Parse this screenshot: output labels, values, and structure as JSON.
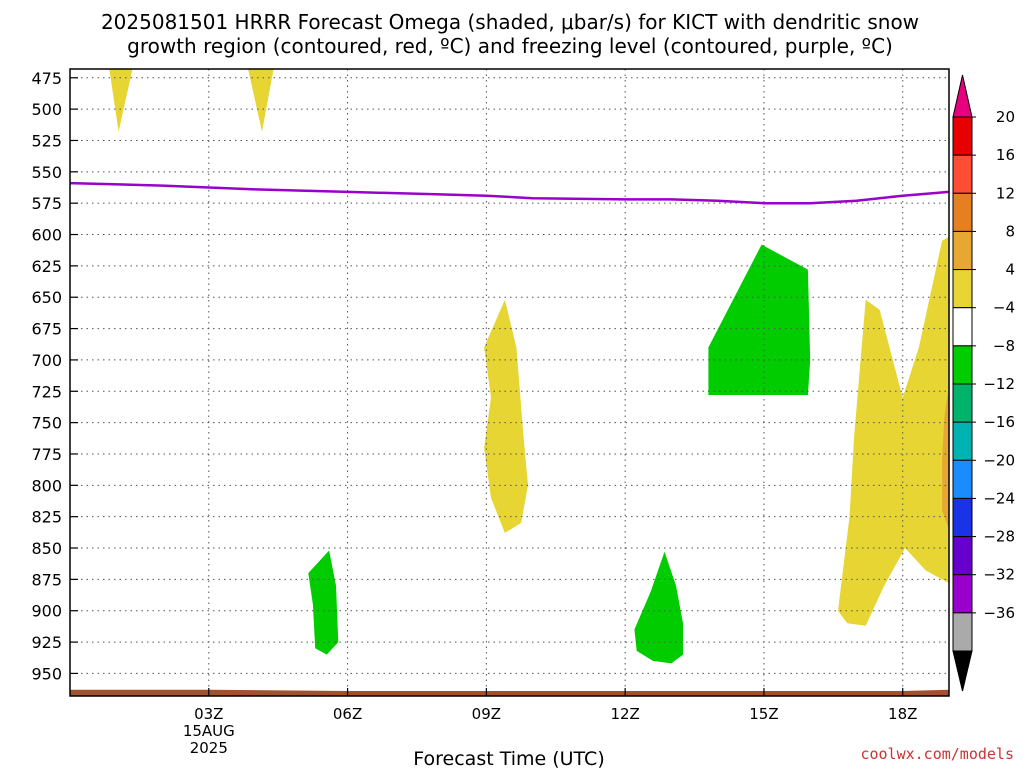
{
  "chart_data": {
    "type": "heatmap",
    "title_line1": "2025081501 HRRR Forecast Omega (shaded, μbar/s) for KICT with dendritic snow",
    "title_line2": "growth region (contoured, red, ºC) and freezing level (contoured, purple, ºC)",
    "xlabel": "Forecast Time (UTC)",
    "credit": "coolwx.com/models",
    "x_range_hours_utc": [
      0,
      19
    ],
    "x_ticks": [
      {
        "hour": 3,
        "label": "03Z",
        "sub1": "15AUG",
        "sub2": "2025"
      },
      {
        "hour": 6,
        "label": "06Z"
      },
      {
        "hour": 9,
        "label": "09Z"
      },
      {
        "hour": 12,
        "label": "12Z"
      },
      {
        "hour": 15,
        "label": "15Z"
      },
      {
        "hour": 18,
        "label": "18Z"
      }
    ],
    "y_range_hpa": [
      968,
      468
    ],
    "y_ticks": [
      "475",
      "500",
      "525",
      "550",
      "575",
      "600",
      "625",
      "650",
      "675",
      "700",
      "725",
      "750",
      "775",
      "800",
      "825",
      "850",
      "875",
      "900",
      "925",
      "950"
    ],
    "freezing_level": {
      "color": "#9900cc",
      "points": [
        [
          0,
          559
        ],
        [
          2,
          561
        ],
        [
          4,
          564
        ],
        [
          6,
          566
        ],
        [
          8,
          568
        ],
        [
          9,
          569
        ],
        [
          10,
          571
        ],
        [
          12,
          572
        ],
        [
          13,
          572
        ],
        [
          14,
          573
        ],
        [
          15,
          575
        ],
        [
          16,
          575
        ],
        [
          17,
          573
        ],
        [
          18,
          569
        ],
        [
          19,
          566
        ]
      ]
    },
    "surface": {
      "color": "#a0522d",
      "top": [
        [
          0,
          963
        ],
        [
          3,
          963
        ],
        [
          6,
          964
        ],
        [
          9,
          964
        ],
        [
          12,
          964
        ],
        [
          15,
          964
        ],
        [
          18,
          964
        ],
        [
          19,
          963
        ]
      ]
    },
    "shaded_regions": [
      {
        "level": "4 to 8",
        "color": "#e6d533",
        "points": [
          [
            0.85,
            468
          ],
          [
            1.35,
            468
          ],
          [
            1.05,
            518
          ]
        ]
      },
      {
        "level": "4 to 8",
        "color": "#e6d533",
        "points": [
          [
            3.85,
            468
          ],
          [
            4.4,
            468
          ],
          [
            4.15,
            518
          ]
        ]
      },
      {
        "level": "4 to 8",
        "color": "#e6d533",
        "points": [
          [
            8.95,
            690
          ],
          [
            9.4,
            652
          ],
          [
            9.65,
            690
          ],
          [
            9.8,
            760
          ],
          [
            9.9,
            800
          ],
          [
            9.75,
            830
          ],
          [
            9.4,
            838
          ],
          [
            9.1,
            810
          ],
          [
            8.95,
            770
          ],
          [
            9.1,
            730
          ]
        ]
      },
      {
        "level": "-8 to -4",
        "color": "#00cc00",
        "points": [
          [
            5.15,
            870
          ],
          [
            5.6,
            852
          ],
          [
            5.75,
            880
          ],
          [
            5.8,
            925
          ],
          [
            5.55,
            935
          ],
          [
            5.3,
            930
          ],
          [
            5.25,
            895
          ]
        ]
      },
      {
        "level": "-8 to -4",
        "color": "#00cc00",
        "points": [
          [
            13.8,
            690
          ],
          [
            14.95,
            608
          ],
          [
            15.95,
            628
          ],
          [
            16.0,
            700
          ],
          [
            15.95,
            728
          ],
          [
            13.8,
            728
          ]
        ]
      },
      {
        "level": "-8 to -4",
        "color": "#00cc00",
        "points": [
          [
            12.2,
            915
          ],
          [
            12.55,
            885
          ],
          [
            12.85,
            853
          ],
          [
            13.1,
            880
          ],
          [
            13.25,
            910
          ],
          [
            13.25,
            935
          ],
          [
            13.0,
            942
          ],
          [
            12.6,
            940
          ],
          [
            12.25,
            932
          ]
        ]
      },
      {
        "level": "4 to 8",
        "color": "#e6d533",
        "points": [
          [
            16.6,
            900
          ],
          [
            16.85,
            825
          ],
          [
            16.95,
            760
          ],
          [
            17.2,
            652
          ],
          [
            17.5,
            660
          ],
          [
            18.0,
            730
          ],
          [
            18.35,
            690
          ],
          [
            18.85,
            605
          ],
          [
            19.0,
            602
          ],
          [
            19.0,
            878
          ],
          [
            18.5,
            868
          ],
          [
            18.05,
            850
          ],
          [
            17.6,
            880
          ],
          [
            17.2,
            912
          ],
          [
            16.8,
            910
          ]
        ]
      },
      {
        "level": "8 to 12",
        "color": "#e6a833",
        "points": [
          [
            18.85,
            780
          ],
          [
            18.9,
            745
          ],
          [
            19.0,
            720
          ],
          [
            19.0,
            835
          ],
          [
            18.85,
            820
          ]
        ]
      }
    ],
    "colorbar": {
      "labels": [
        "20",
        "16",
        "12",
        "8",
        "4",
        "−4",
        "−8",
        "−12",
        "−16",
        "−20",
        "−24",
        "−28",
        "−32",
        "−36"
      ],
      "colors": [
        "#e60000",
        "#ff4d33",
        "#e67e22",
        "#e6a833",
        "#e6d533",
        "#ffffff",
        "#00cc00",
        "#00b36b",
        "#00b3b3",
        "#1a8cff",
        "#1a33e6",
        "#6600cc",
        "#9900cc",
        "#aaaaaa"
      ],
      "top_arrow_color": "#e6007e",
      "bottom_arrow_color": "#000000"
    }
  }
}
